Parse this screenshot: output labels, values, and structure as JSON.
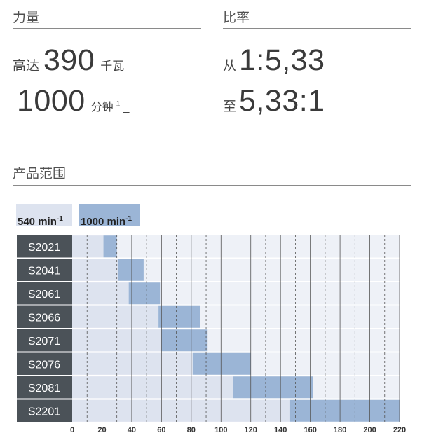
{
  "power": {
    "title": "力量",
    "line1_prefix": "高达",
    "line1_value": "390",
    "line1_unit": "千瓦",
    "line2_value": "1000",
    "line2_unit": "分钟",
    "line2_sup": "-1",
    "line2_suffix": "_"
  },
  "ratio": {
    "title": "比率",
    "line1_prefix": "从",
    "line1_value": "1:5,33",
    "line2_prefix": "至",
    "line2_value": "5,33:1"
  },
  "range": {
    "title": "产品范围"
  },
  "colors": {
    "light_bar": "#dde3ef",
    "dark_bar": "#9bb5d6",
    "label_bg": "#4b5258"
  },
  "chart_data": {
    "type": "bar",
    "legend": [
      {
        "label": "540 min",
        "sup": "-1"
      },
      {
        "label": "1000 min",
        "sup": "-1"
      }
    ],
    "x_ticks": [
      0,
      20,
      40,
      60,
      80,
      100,
      120,
      140,
      160,
      180,
      200,
      220
    ],
    "xlim": [
      0,
      220
    ],
    "categories": [
      "S2021",
      "S2041",
      "S2061",
      "S2066",
      "S2071",
      "S2076",
      "S2081",
      "S2201"
    ],
    "series": [
      {
        "name": "540 min-1",
        "ranges": [
          [
            0,
            30
          ],
          [
            0,
            31
          ],
          [
            0,
            38
          ],
          [
            0,
            58
          ],
          [
            0,
            60
          ],
          [
            0,
            81
          ],
          [
            0,
            108
          ],
          [
            0,
            146
          ]
        ]
      },
      {
        "name": "1000 min-1",
        "ranges": [
          [
            21,
            30
          ],
          [
            31,
            48
          ],
          [
            38,
            59
          ],
          [
            58,
            86
          ],
          [
            60,
            91
          ],
          [
            81,
            120
          ],
          [
            108,
            162
          ],
          [
            146,
            220
          ]
        ]
      }
    ]
  }
}
